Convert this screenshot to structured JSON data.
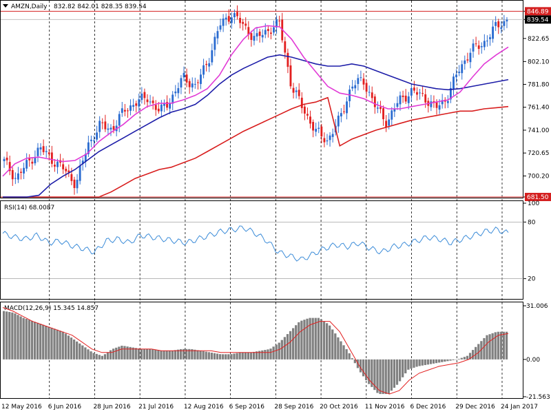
{
  "window_title": "AMZN,Daily",
  "ohlc_header": "832.82 842.01 828.35 839.54",
  "price_badges": {
    "high_line": "846.89",
    "last_price": "839.54",
    "low_line": "681.50"
  },
  "rsi_label": "RSI(14) 68.0087",
  "macd_label": "MACD(12,26,9) 15.345 14.857",
  "colors": {
    "bull": "#2a6bd0",
    "bear": "#e21f1f",
    "ma_fast": "#e13ad6",
    "ma_mid": "#1c1ca8",
    "ma_slow": "#d81c1c",
    "rsi": "#3a8bd8",
    "macd_hist": "#808080",
    "macd_signal": "#e21f1f",
    "level_line": "#d42020"
  },
  "chart_data": [
    {
      "type": "candlestick",
      "title": "AMZN,Daily",
      "ylim": [
        681.5,
        852
      ],
      "y_ticks": [
        "846.89",
        "839.54",
        "822.65",
        "802.10",
        "781.80",
        "761.40",
        "741.00",
        "720.65",
        "700.20",
        "681.50"
      ],
      "x_ticks": [
        "12 May 2016",
        "6 Jun 2016",
        "28 Jun 2016",
        "21 Jul 2016",
        "12 Aug 2016",
        "6 Sep 2016",
        "28 Sep 2016",
        "20 Oct 2016",
        "11 Nov 2016",
        "6 Dec 2016",
        "29 Dec 2016",
        "24 Jan 2017"
      ],
      "close_series": [
        {
          "t": "12 May 2016",
          "v": 713
        },
        {
          "t": "20 May 2016",
          "v": 698
        },
        {
          "t": "27 May 2016",
          "v": 712
        },
        {
          "t": "6 Jun 2016",
          "v": 725
        },
        {
          "t": "14 Jun 2016",
          "v": 715
        },
        {
          "t": "22 Jun 2016",
          "v": 706
        },
        {
          "t": "28 Jun 2016",
          "v": 693
        },
        {
          "t": "6 Jul 2016",
          "v": 728
        },
        {
          "t": "14 Jul 2016",
          "v": 745
        },
        {
          "t": "21 Jul 2016",
          "v": 742
        },
        {
          "t": "29 Jul 2016",
          "v": 758
        },
        {
          "t": "5 Aug 2016",
          "v": 766
        },
        {
          "t": "12 Aug 2016",
          "v": 770
        },
        {
          "t": "22 Aug 2016",
          "v": 757
        },
        {
          "t": "30 Aug 2016",
          "v": 770
        },
        {
          "t": "6 Sep 2016",
          "v": 788
        },
        {
          "t": "14 Sep 2016",
          "v": 780
        },
        {
          "t": "21 Sep 2016",
          "v": 802
        },
        {
          "t": "28 Sep 2016",
          "v": 834
        },
        {
          "t": "3 Oct 2016",
          "v": 845
        },
        {
          "t": "10 Oct 2016",
          "v": 834
        },
        {
          "t": "14 Oct 2016",
          "v": 822
        },
        {
          "t": "20 Oct 2016",
          "v": 830
        },
        {
          "t": "25 Oct 2016",
          "v": 836
        },
        {
          "t": "28 Oct 2016",
          "v": 780
        },
        {
          "t": "3 Nov 2016",
          "v": 760
        },
        {
          "t": "8 Nov 2016",
          "v": 740
        },
        {
          "t": "11 Nov 2016",
          "v": 732
        },
        {
          "t": "15 Nov 2016",
          "v": 750
        },
        {
          "t": "18 Nov 2016",
          "v": 780
        },
        {
          "t": "23 Nov 2016",
          "v": 786
        },
        {
          "t": "30 Nov 2016",
          "v": 762
        },
        {
          "t": "6 Dec 2016",
          "v": 748
        },
        {
          "t": "12 Dec 2016",
          "v": 768
        },
        {
          "t": "19 Dec 2016",
          "v": 775
        },
        {
          "t": "23 Dec 2016",
          "v": 772
        },
        {
          "t": "29 Dec 2016",
          "v": 760
        },
        {
          "t": "4 Jan 2017",
          "v": 770
        },
        {
          "t": "10 Jan 2017",
          "v": 795
        },
        {
          "t": "17 Jan 2017",
          "v": 812
        },
        {
          "t": "20 Jan 2017",
          "v": 818
        },
        {
          "t": "24 Jan 2017",
          "v": 832
        },
        {
          "t": "27 Jan 2017",
          "v": 839.54
        }
      ],
      "ma_fast": [
        700,
        711,
        716,
        717,
        715,
        713,
        714,
        720,
        731,
        739,
        746,
        755,
        762,
        765,
        765,
        768,
        772,
        778,
        790,
        808,
        822,
        832,
        834,
        833,
        822,
        806,
        793,
        780,
        774,
        772,
        769,
        764,
        760,
        760,
        762,
        764,
        766,
        768,
        775,
        788,
        800,
        808,
        815
      ],
      "ma_mid": [
        650,
        662,
        672,
        683,
        693,
        700,
        706,
        714,
        722,
        728,
        734,
        740,
        746,
        752,
        757,
        760,
        764,
        772,
        782,
        790,
        796,
        801,
        806,
        808,
        806,
        803,
        800,
        798,
        798,
        800,
        798,
        794,
        790,
        786,
        782,
        780,
        778,
        777,
        778,
        780,
        782,
        784,
        786
      ],
      "ma_slow": [
        600,
        610,
        620,
        630,
        640,
        650,
        660,
        670,
        680,
        686,
        692,
        698,
        702,
        706,
        708,
        712,
        716,
        722,
        728,
        734,
        740,
        745,
        750,
        755,
        760,
        764,
        766,
        770,
        727,
        733,
        737,
        741,
        744,
        747,
        750,
        752,
        754,
        756,
        758,
        758,
        760,
        761,
        762
      ]
    },
    {
      "type": "line",
      "title": "RSI(14) 68.0087",
      "ylim": [
        0,
        100
      ],
      "y_ticks": [
        "100",
        "80",
        "20"
      ],
      "levels": [
        80,
        20
      ],
      "values": [
        68,
        64,
        62,
        66,
        58,
        60,
        55,
        52,
        48,
        60,
        62,
        58,
        66,
        64,
        62,
        60,
        58,
        62,
        66,
        70,
        72,
        74,
        68,
        60,
        48,
        44,
        40,
        46,
        52,
        56,
        54,
        58,
        52,
        48,
        54,
        56,
        60,
        64,
        62,
        58,
        62,
        66,
        70,
        72,
        68
      ]
    },
    {
      "type": "bar+line",
      "title": "MACD(12,26,9) 15.345 14.857",
      "ylim": [
        -21.563,
        31.006
      ],
      "y_ticks": [
        "31.006",
        "0.00",
        "-21.563"
      ],
      "hist": [
        28,
        27,
        24,
        22,
        20,
        18,
        16,
        12,
        8,
        4,
        2,
        6,
        8,
        7,
        6,
        6,
        5,
        5,
        6,
        6,
        5,
        4,
        3,
        3,
        4,
        4,
        5,
        6,
        10,
        16,
        22,
        24,
        24,
        20,
        12,
        4,
        -6,
        -14,
        -20,
        -20,
        -14,
        -6,
        -4,
        -3,
        -2,
        -1,
        0,
        2,
        8,
        14,
        16,
        16
      ],
      "signal": [
        30,
        28,
        25,
        22,
        20,
        18,
        16,
        14,
        10,
        6,
        4,
        4,
        6,
        6,
        6,
        6,
        5,
        5,
        5,
        5,
        5,
        5,
        4,
        4,
        4,
        4,
        4,
        4,
        6,
        10,
        16,
        20,
        22,
        22,
        16,
        6,
        -4,
        -12,
        -18,
        -20,
        -18,
        -12,
        -8,
        -6,
        -4,
        -3,
        -2,
        0,
        4,
        10,
        14,
        15
      ]
    }
  ]
}
